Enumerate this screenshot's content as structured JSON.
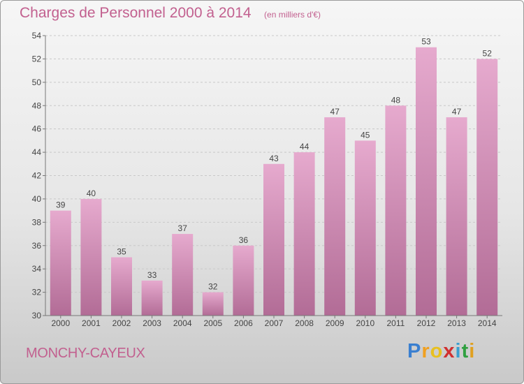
{
  "title": "Charges de Personnel 2000 à 2014",
  "subtitle": "(en milliers d'€)",
  "place": "MONCHY-CAYEUX",
  "brand": {
    "letters": [
      "P",
      "r",
      "o",
      "x",
      "i",
      "t",
      "i"
    ],
    "colors": [
      "#3a7fd0",
      "#f0a020",
      "#e8c020",
      "#d03030",
      "#3a9fd0",
      "#30a040",
      "#e0a020"
    ]
  },
  "colors": {
    "bar_top": "#e6aace",
    "bar_bottom": "#b26c96",
    "text": "#c2608f"
  },
  "chart_data": {
    "type": "bar",
    "categories": [
      "2000",
      "2001",
      "2002",
      "2003",
      "2004",
      "2005",
      "2006",
      "2007",
      "2008",
      "2009",
      "2010",
      "2011",
      "2012",
      "2013",
      "2014"
    ],
    "values": [
      39,
      40,
      35,
      33,
      37,
      32,
      36,
      43,
      44,
      47,
      45,
      48,
      53,
      47,
      52
    ],
    "ylim": [
      30,
      54
    ],
    "yticks": [
      30,
      32,
      34,
      36,
      38,
      40,
      42,
      44,
      46,
      48,
      50,
      52,
      54
    ],
    "grid": "horizontal dashed"
  }
}
